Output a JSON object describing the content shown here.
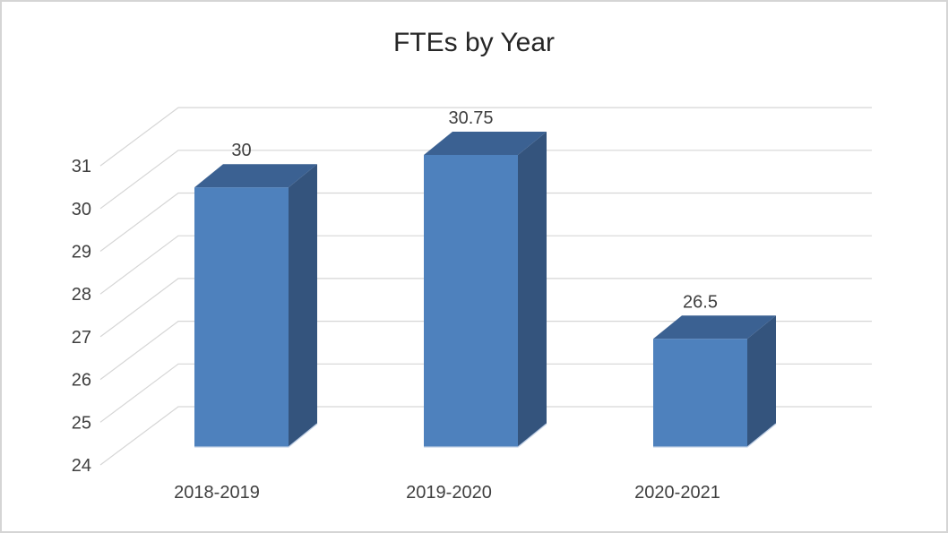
{
  "chart_data": {
    "type": "bar",
    "variant": "3d-column",
    "title": "FTEs by Year",
    "categories": [
      "2018-2019",
      "2019-2020",
      "2020-2021"
    ],
    "values": [
      30,
      30.75,
      26.5
    ],
    "data_labels": [
      "30",
      "30.75",
      "26.5"
    ],
    "yticks": [
      24,
      25,
      26,
      27,
      28,
      29,
      30,
      31
    ],
    "ytick_labels": [
      "24",
      "25",
      "26",
      "27",
      "28",
      "29",
      "30",
      "31"
    ],
    "ylim": [
      24,
      31
    ],
    "grid": true,
    "legend_position": "none",
    "xlabel": "",
    "ylabel": "",
    "colors": {
      "bar_front": "#4E81BD",
      "bar_top": "#3B6192",
      "bar_side": "#34547D",
      "bar_bottom_highlight": "#C2D1E6",
      "gridline": "#D6D6D6",
      "title_color": "#262626",
      "axis_label_color": "#3F3F3F",
      "data_label_color": "#3F3F3F",
      "frame_border": "#D5D5D5",
      "background": "#FFFFFF"
    }
  }
}
